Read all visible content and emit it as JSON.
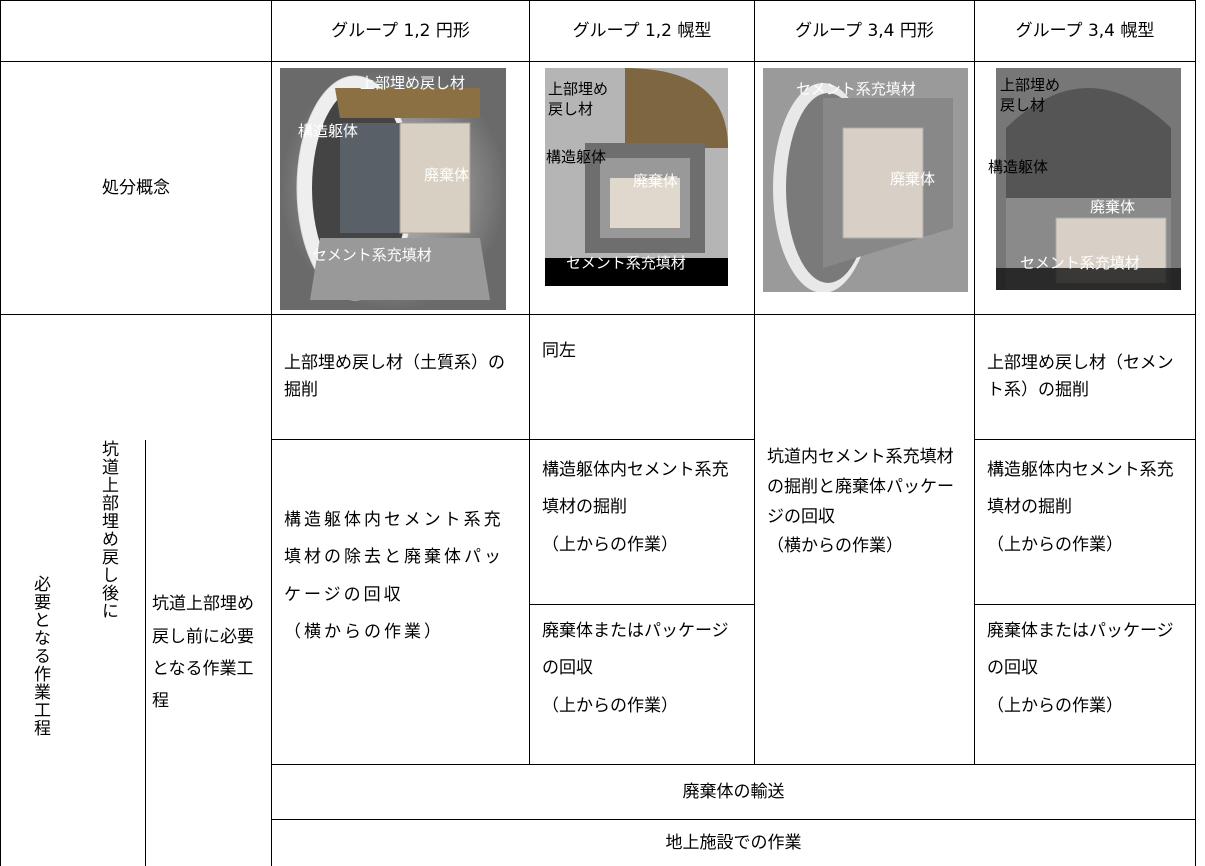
{
  "header": {
    "columns": [
      "グループ 1,2 円形",
      "グループ 1,2 幌型",
      "グループ 3,4 円形",
      "グループ 3,4 幌型"
    ]
  },
  "concept": {
    "label": "処分概念",
    "images": [
      {
        "labels": [
          "上部埋め戻し材",
          "構造躯体",
          "廃棄体",
          "セメント系充填材"
        ]
      },
      {
        "labels": [
          "上部埋め戻し材",
          "構造躯体",
          "廃棄体",
          "セメント系充填材"
        ]
      },
      {
        "labels": [
          "セメント系充填材",
          "廃棄体"
        ]
      },
      {
        "labels": [
          "上部埋め戻し材",
          "構造躯体",
          "廃棄体",
          "セメント系充填材"
        ]
      }
    ]
  },
  "process": {
    "label": "必要となる作業工程",
    "after_label": "坑道上部埋め戻し後に",
    "before_label": "坑道上部埋め戻し前に必要となる作業工程",
    "excavation": {
      "group12_circular": "上部埋め戻し材（土質系）の掘削",
      "group12_horseshoe": "同左",
      "group34_horseshoe": "上部埋め戻し材（セメント系）の掘削"
    },
    "group12_circular": {
      "text": "構造躯体内セメント系充填材の除去と廃棄体パッケージの回収",
      "note": "（横からの作業）"
    },
    "group12_horseshoe": [
      {
        "text": "構造躯体内セメント系充填材の掘削",
        "note": "（上からの作業）"
      },
      {
        "text": "廃棄体またはパッケージの回収",
        "note": "（上からの作業）"
      }
    ],
    "group34_circular": {
      "text": "坑道内セメント系充填材の掘削と廃棄体パッケージの回収",
      "note": "（横からの作業）"
    },
    "group34_horseshoe": [
      {
        "text": "構造躯体内セメント系充填材の掘削",
        "note": "（上からの作業）"
      },
      {
        "text": "廃棄体またはパッケージの回収",
        "note": "（上からの作業）"
      }
    ],
    "transport": "廃棄体の輸送",
    "surface": "地上施設での作業"
  }
}
